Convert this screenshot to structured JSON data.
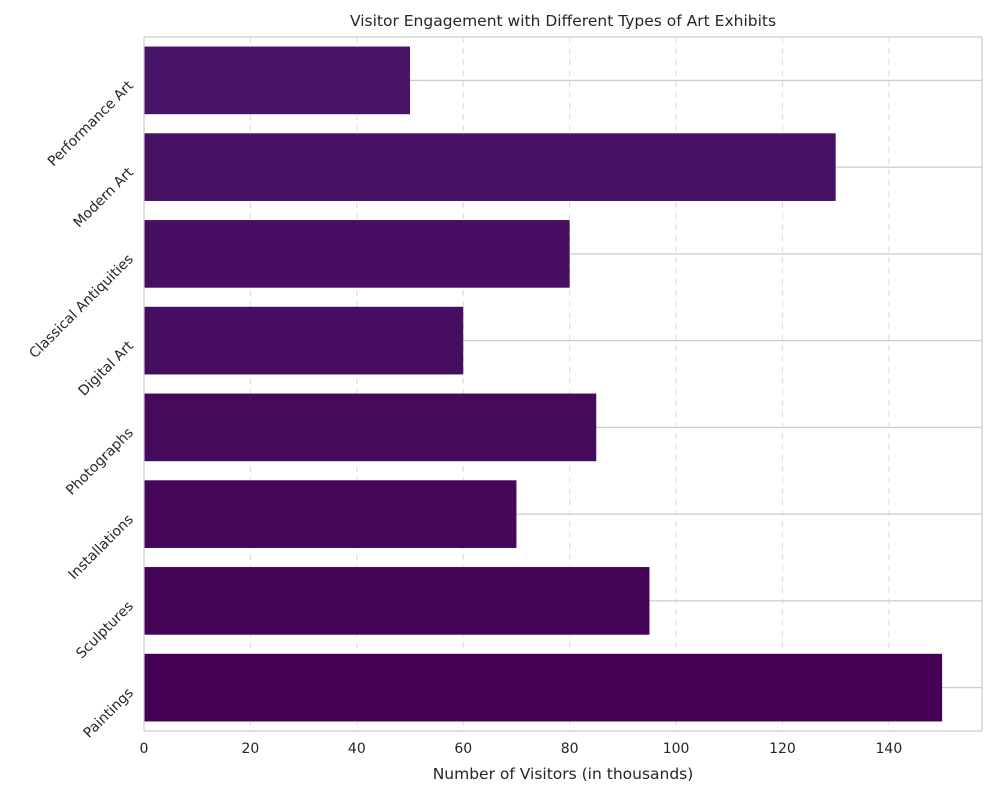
{
  "chart_data": {
    "type": "bar",
    "orientation": "horizontal",
    "title": "Visitor Engagement with Different Types of Art Exhibits",
    "xlabel": "Number of Visitors (in thousands)",
    "ylabel": "",
    "categories": [
      "Paintings",
      "Sculptures",
      "Installations",
      "Photographs",
      "Digital Art",
      "Classical Antiquities",
      "Modern Art",
      "Performance Art"
    ],
    "values": [
      150,
      95,
      70,
      85,
      60,
      80,
      130,
      50
    ],
    "xlim": [
      0,
      157.5
    ],
    "xticks": [
      0,
      20,
      40,
      60,
      80,
      100,
      120,
      140
    ],
    "grid": true,
    "bar_colors": [
      "#440154",
      "#450457",
      "#46075a",
      "#460a5d",
      "#470d60",
      "#470e61",
      "#481163",
      "#481467"
    ]
  }
}
